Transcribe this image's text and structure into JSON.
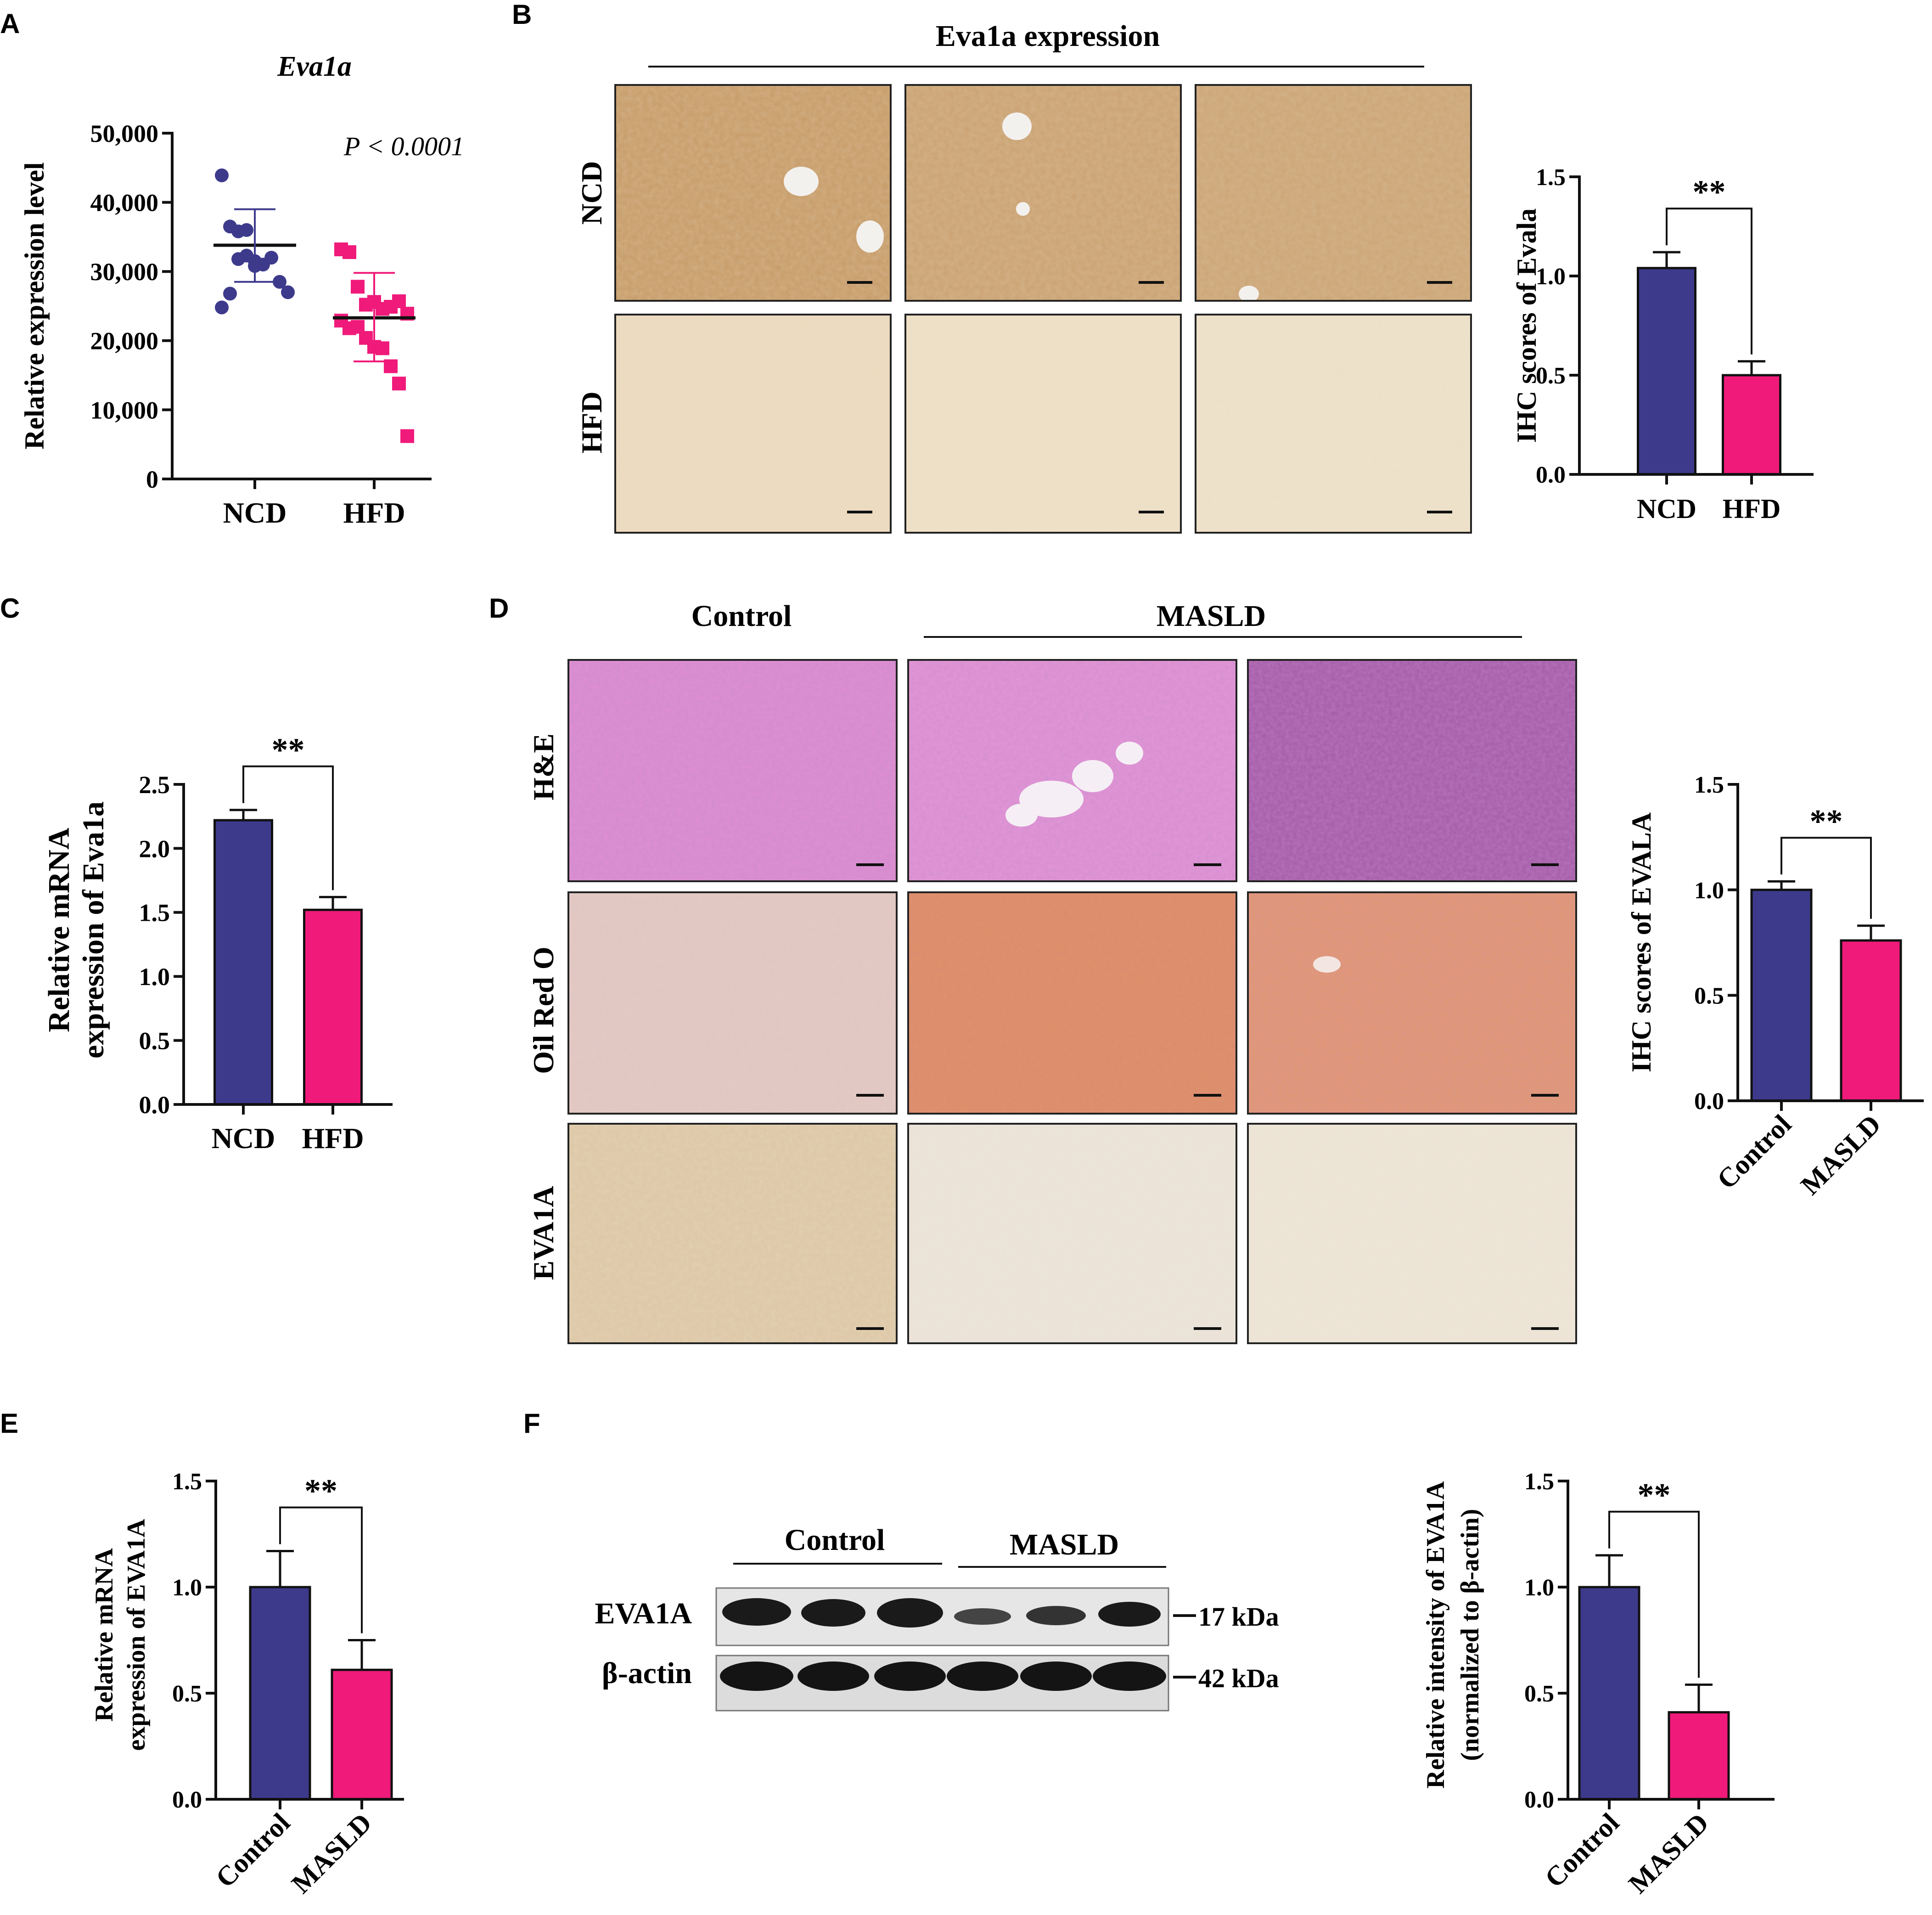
{
  "colors": {
    "ncd": "#3d3a8c",
    "hfd": "#f01a7a",
    "axis": "#111111"
  },
  "panel_labels": [
    "A",
    "B",
    "C",
    "D",
    "E",
    "F"
  ],
  "panel_a": {
    "title": "Eva1a",
    "ylabel": "Relative expression level",
    "pvalue": "P < 0.0001"
  },
  "panel_b": {
    "header": "Eva1a expression",
    "rows": [
      "NCD",
      "HFD"
    ]
  },
  "panel_d": {
    "header_control": "Control",
    "header_masld": "MASLD",
    "rows": [
      "H&E",
      "Oil Red O",
      "EVA1A"
    ]
  },
  "panel_f": {
    "header_control": "Control",
    "header_masld": "MASLD",
    "blot_rows": [
      "EVA1A",
      "β-actin"
    ],
    "markers": [
      "17 kDa",
      "42 kDa"
    ]
  },
  "chart_data": [
    {
      "panel": "A",
      "type": "scatter",
      "title": "Eva1a",
      "ylabel": "Relative expression level",
      "ylim": [
        0,
        50000
      ],
      "yticks": [
        "0",
        "10,000",
        "20,000",
        "30,000",
        "40,000",
        "50,000"
      ],
      "categories": [
        "NCD",
        "HFD"
      ],
      "annotation": "P < 0.0001",
      "series": [
        {
          "name": "NCD",
          "marker": "circle",
          "mean": 33800,
          "sd_low": 28500,
          "sd_high": 39000,
          "values": [
            43900,
            36500,
            35800,
            36000,
            31500,
            31000,
            32000,
            28500,
            27000,
            24800,
            26800,
            31800,
            32300,
            30800
          ]
        },
        {
          "name": "HFD",
          "marker": "square",
          "mean": 23300,
          "sd_low": 17000,
          "sd_high": 29800,
          "values": [
            33200,
            32800,
            27800,
            25200,
            25600,
            24600,
            24900,
            25700,
            23900,
            22900,
            21800,
            22000,
            20400,
            19100,
            18900,
            16300,
            13800,
            6200
          ]
        }
      ]
    },
    {
      "panel": "B",
      "type": "bar",
      "ylabel": "IHC scores of Evala",
      "ylim": [
        0,
        1.5
      ],
      "yticks": [
        "0.0",
        "0.5",
        "1.0",
        "1.5"
      ],
      "categories": [
        "NCD",
        "HFD"
      ],
      "values": [
        1.04,
        0.5
      ],
      "errors": [
        0.08,
        0.07
      ],
      "significance": "**"
    },
    {
      "panel": "C",
      "type": "bar",
      "ylabel": "Relative mRNA expression of Eva1a",
      "ylim": [
        0,
        2.5
      ],
      "yticks": [
        "0.0",
        "0.5",
        "1.0",
        "1.5",
        "2.0",
        "2.5"
      ],
      "categories": [
        "NCD",
        "HFD"
      ],
      "values": [
        2.22,
        1.52
      ],
      "errors": [
        0.08,
        0.1
      ],
      "significance": "**"
    },
    {
      "panel": "D",
      "type": "bar",
      "ylabel": "IHC scores of EVALA",
      "ylim": [
        0,
        1.5
      ],
      "yticks": [
        "0.0",
        "0.5",
        "1.0",
        "1.5"
      ],
      "categories": [
        "Control",
        "MASLD"
      ],
      "values": [
        1.0,
        0.76
      ],
      "errors": [
        0.04,
        0.07
      ],
      "significance": "**"
    },
    {
      "panel": "E",
      "type": "bar",
      "ylabel": "Relative mRNA expression of EVA1A",
      "ylim": [
        0,
        1.5
      ],
      "yticks": [
        "0.0",
        "0.5",
        "1.0",
        "1.5"
      ],
      "categories": [
        "Control",
        "MASLD"
      ],
      "values": [
        1.0,
        0.61
      ],
      "errors": [
        0.17,
        0.14
      ],
      "significance": "**"
    },
    {
      "panel": "F",
      "type": "bar",
      "ylabel": "Relative intensity of EVA1A (normalized to β-actin)",
      "ylim": [
        0,
        1.5
      ],
      "yticks": [
        "0.0",
        "0.5",
        "1.0",
        "1.5"
      ],
      "categories": [
        "Control",
        "MASLD"
      ],
      "values": [
        1.0,
        0.41
      ],
      "errors": [
        0.15,
        0.13
      ],
      "significance": "**"
    }
  ]
}
